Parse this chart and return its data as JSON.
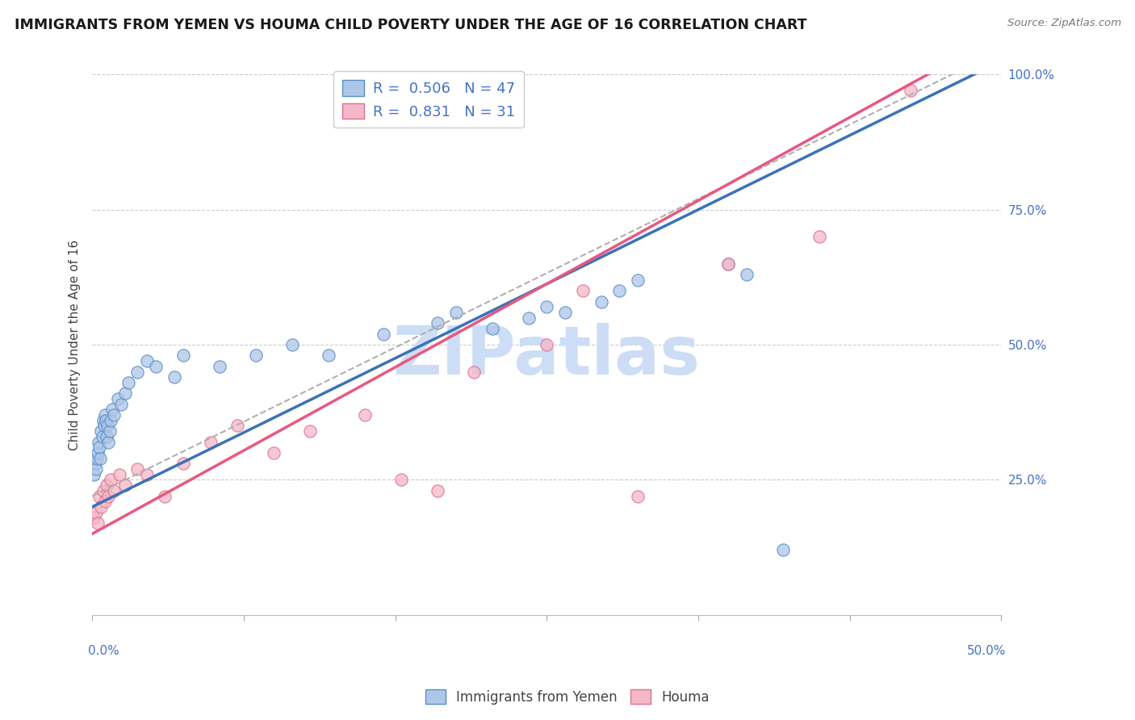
{
  "title": "IMMIGRANTS FROM YEMEN VS HOUMA CHILD POVERTY UNDER THE AGE OF 16 CORRELATION CHART",
  "source": "Source: ZipAtlas.com",
  "ylabel": "Child Poverty Under the Age of 16",
  "xlim": [
    0.0,
    50.0
  ],
  "ylim": [
    0.0,
    100.0
  ],
  "legend_r1": "R =  0.506",
  "legend_n1": "N = 47",
  "legend_r2": "R =  0.831",
  "legend_n2": "N = 31",
  "color_blue_fill": "#aec6e8",
  "color_blue_edge": "#5b8ec4",
  "color_pink_fill": "#f4b8c8",
  "color_pink_edge": "#e07090",
  "color_blue_line": "#3a72b8",
  "color_pink_line": "#e85880",
  "color_gray_line": "#b0b0b0",
  "watermark": "ZIPatlas",
  "watermark_color": "#ccddf5",
  "background_color": "#ffffff",
  "grid_color": "#cccccc",
  "blue_x": [
    0.1,
    0.15,
    0.2,
    0.25,
    0.3,
    0.35,
    0.4,
    0.45,
    0.5,
    0.55,
    0.6,
    0.65,
    0.7,
    0.75,
    0.8,
    0.85,
    0.9,
    0.95,
    1.0,
    1.1,
    1.2,
    1.4,
    1.6,
    1.8,
    2.0,
    2.5,
    3.0,
    3.5,
    4.5,
    5.0,
    7.0,
    9.0,
    11.0,
    13.0,
    16.0,
    19.0,
    20.0,
    22.0,
    24.0,
    25.0,
    26.0,
    28.0,
    29.0,
    30.0,
    35.0,
    36.0,
    38.0
  ],
  "blue_y": [
    26.0,
    28.0,
    27.0,
    29.0,
    30.0,
    32.0,
    31.0,
    29.0,
    34.0,
    33.0,
    36.0,
    35.0,
    37.0,
    36.0,
    33.0,
    35.0,
    32.0,
    34.0,
    36.0,
    38.0,
    37.0,
    40.0,
    39.0,
    41.0,
    43.0,
    45.0,
    47.0,
    46.0,
    44.0,
    48.0,
    46.0,
    48.0,
    50.0,
    48.0,
    52.0,
    54.0,
    56.0,
    53.0,
    55.0,
    57.0,
    56.0,
    58.0,
    60.0,
    62.0,
    65.0,
    63.0,
    12.0
  ],
  "pink_x": [
    0.1,
    0.2,
    0.3,
    0.4,
    0.5,
    0.6,
    0.7,
    0.8,
    0.9,
    1.0,
    1.2,
    1.5,
    1.8,
    2.5,
    3.0,
    4.0,
    5.0,
    6.5,
    8.0,
    10.0,
    12.0,
    15.0,
    17.0,
    19.0,
    21.0,
    25.0,
    27.0,
    30.0,
    35.0,
    40.0,
    45.0
  ],
  "pink_y": [
    18.0,
    19.0,
    17.0,
    22.0,
    20.0,
    23.0,
    21.0,
    24.0,
    22.0,
    25.0,
    23.0,
    26.0,
    24.0,
    27.0,
    26.0,
    22.0,
    28.0,
    32.0,
    35.0,
    30.0,
    34.0,
    37.0,
    25.0,
    23.0,
    45.0,
    50.0,
    60.0,
    22.0,
    65.0,
    70.0,
    97.0
  ],
  "blue_line_slope": 1.65,
  "blue_line_intercept": 20.0,
  "pink_line_slope": 1.85,
  "pink_line_intercept": 15.0,
  "gray_line_slope": 1.65,
  "gray_line_intercept": 22.0
}
